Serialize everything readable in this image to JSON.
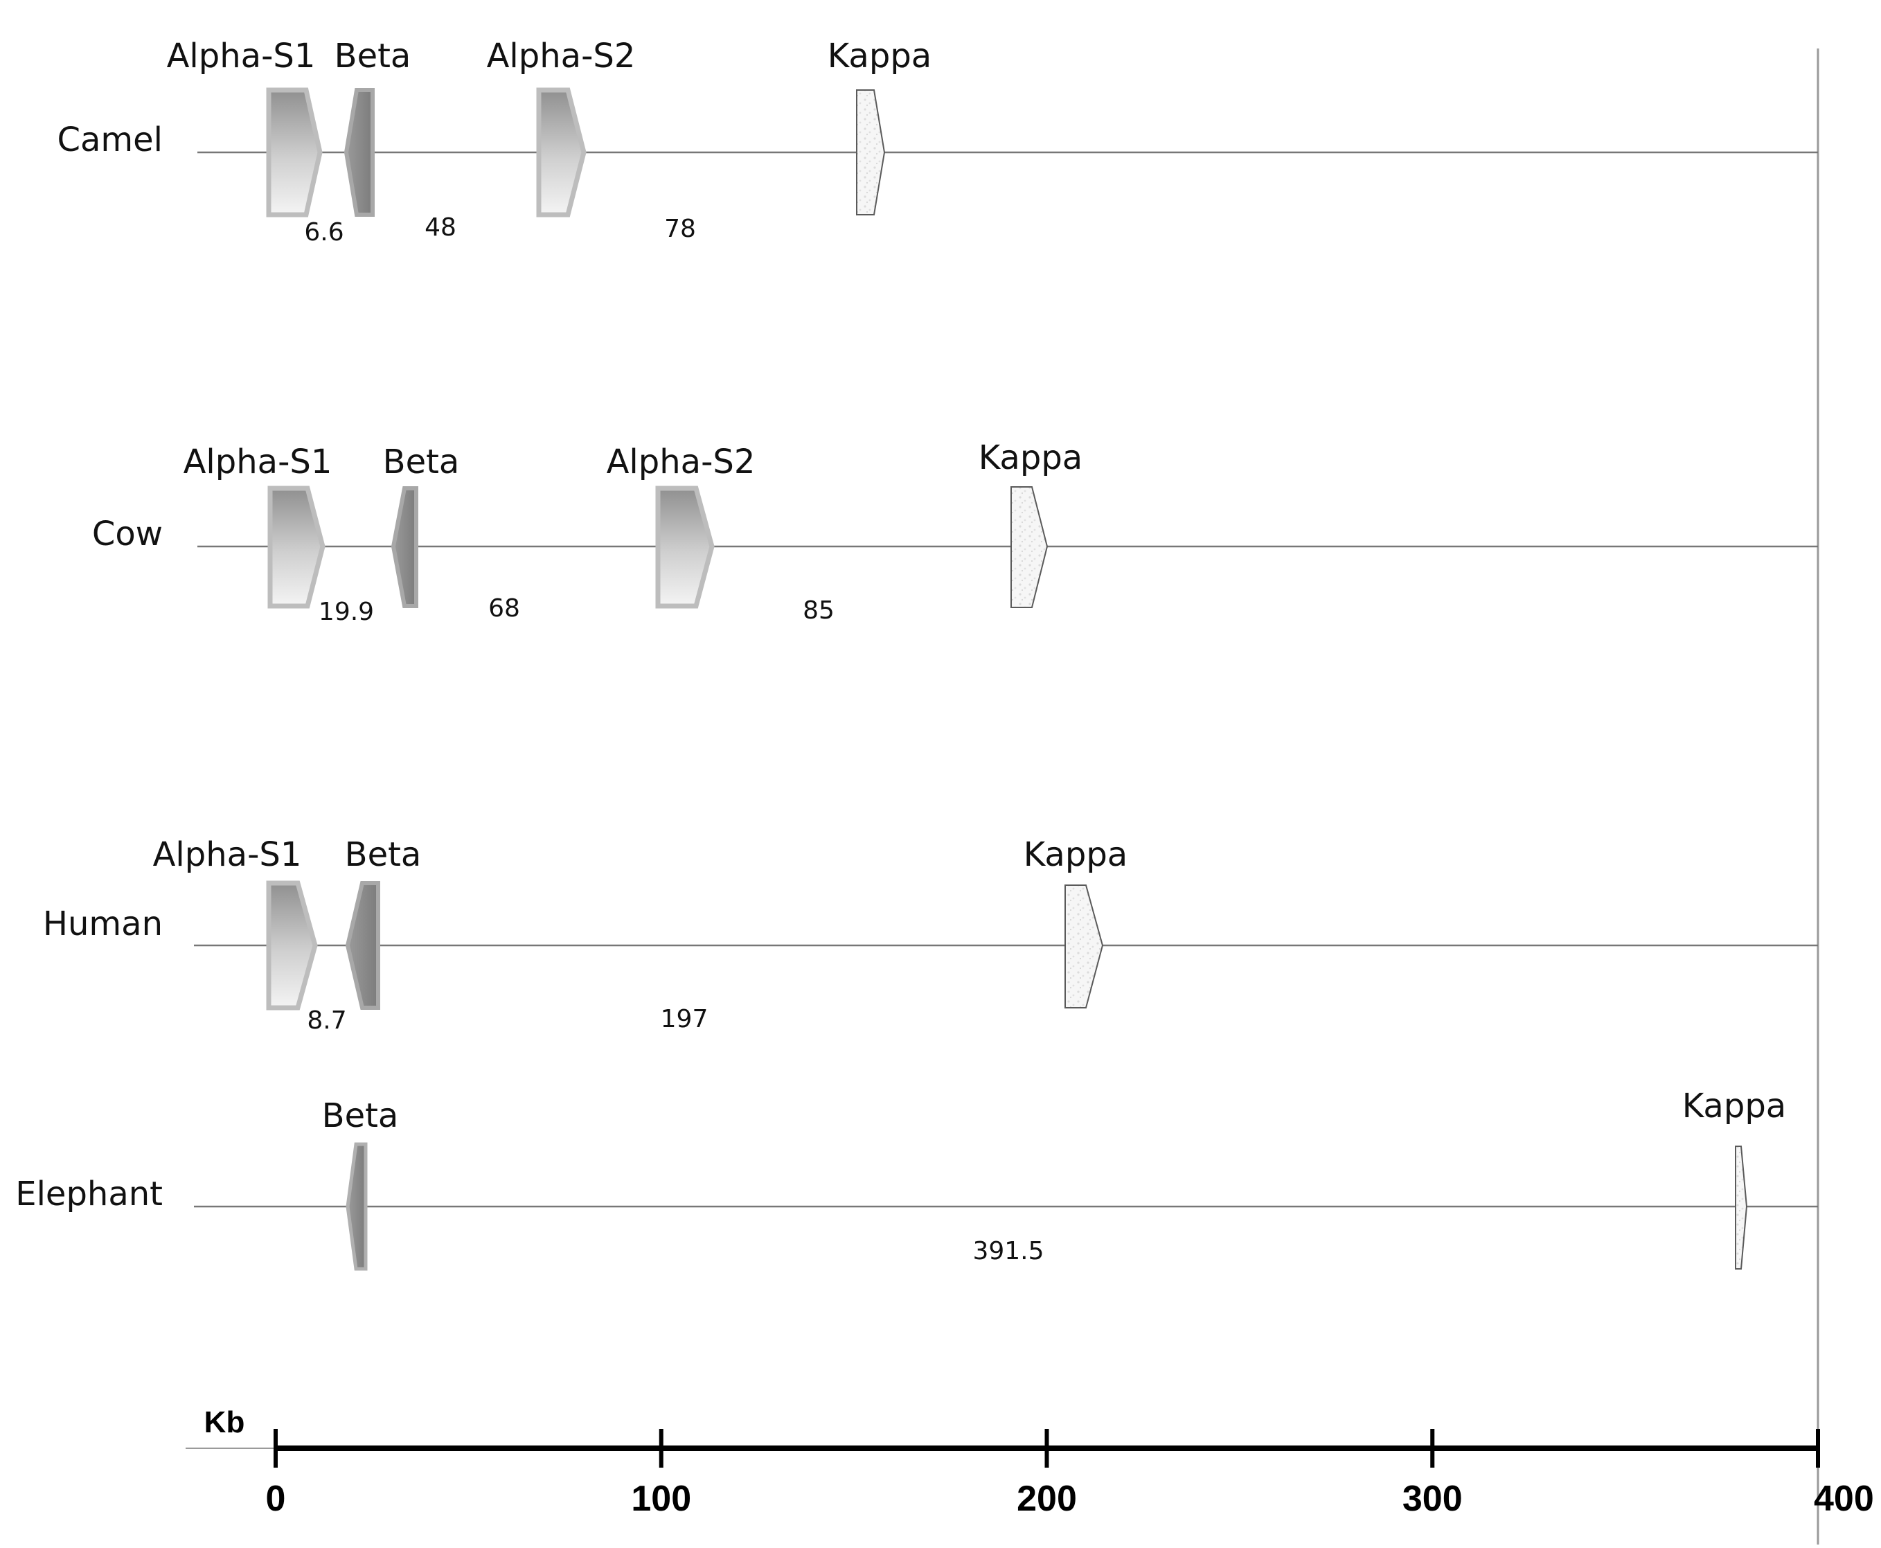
{
  "scale": {
    "unit": "Kb",
    "ticks": [
      0,
      100,
      200,
      300,
      400
    ],
    "range": [
      0,
      400
    ]
  },
  "tracks": [
    {
      "species": "Camel",
      "genes": [
        {
          "name": "Alpha-S1",
          "style": "alpha",
          "position": 0
        },
        {
          "name": "Beta",
          "style": "beta",
          "position": 21
        },
        {
          "name": "Alpha-S2",
          "style": "alpha",
          "position": 69
        },
        {
          "name": "Kappa",
          "style": "kappa",
          "position": 151
        }
      ],
      "distances": [
        "6.6",
        "48",
        "78"
      ]
    },
    {
      "species": "Cow",
      "genes": [
        {
          "name": "Alpha-S1",
          "style": "alpha",
          "position": 0
        },
        {
          "name": "Beta",
          "style": "beta",
          "position": 30
        },
        {
          "name": "Alpha-S2",
          "style": "alpha",
          "position": 100
        },
        {
          "name": "Kappa",
          "style": "kappa",
          "position": 190
        }
      ],
      "distances": [
        "19.9",
        "68",
        "85"
      ]
    },
    {
      "species": "Human",
      "genes": [
        {
          "name": "Alpha-S1",
          "style": "alpha",
          "position": 0
        },
        {
          "name": "Beta",
          "style": "beta",
          "position": 18
        },
        {
          "name": "Kappa",
          "style": "kappa",
          "position": 205
        }
      ],
      "distances": [
        "8.7",
        "197"
      ]
    },
    {
      "species": "Elephant",
      "genes": [
        {
          "name": "Beta",
          "style": "beta",
          "position": 18
        },
        {
          "name": "Kappa",
          "style": "kappa",
          "position": 378
        }
      ],
      "distances": [
        "391.5"
      ]
    }
  ]
}
